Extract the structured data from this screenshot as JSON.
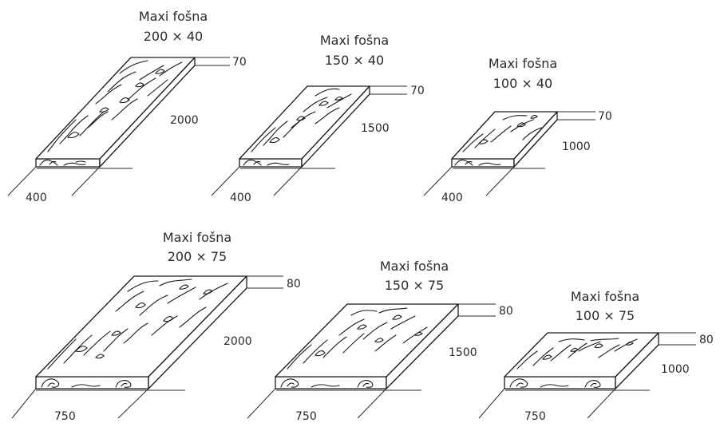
{
  "boards": [
    {
      "name": "Maxi fošna",
      "size": "200 × 40",
      "thickness": "70",
      "length": "2000",
      "width": "400"
    },
    {
      "name": "Maxi fošna",
      "size": "150 × 40",
      "thickness": "70",
      "length": "1500",
      "width": "400"
    },
    {
      "name": "Maxi fošna",
      "size": "100 × 40",
      "thickness": "70",
      "length": "1000",
      "width": "400"
    },
    {
      "name": "Maxi fošna",
      "size": "200 × 75",
      "thickness": "80",
      "length": "2000",
      "width": "750"
    },
    {
      "name": "Maxi fošna",
      "size": "150 × 75",
      "thickness": "80",
      "length": "1500",
      "width": "750"
    },
    {
      "name": "Maxi fošna",
      "size": "100 × 75",
      "thickness": "80",
      "length": "1000",
      "width": "750"
    }
  ]
}
